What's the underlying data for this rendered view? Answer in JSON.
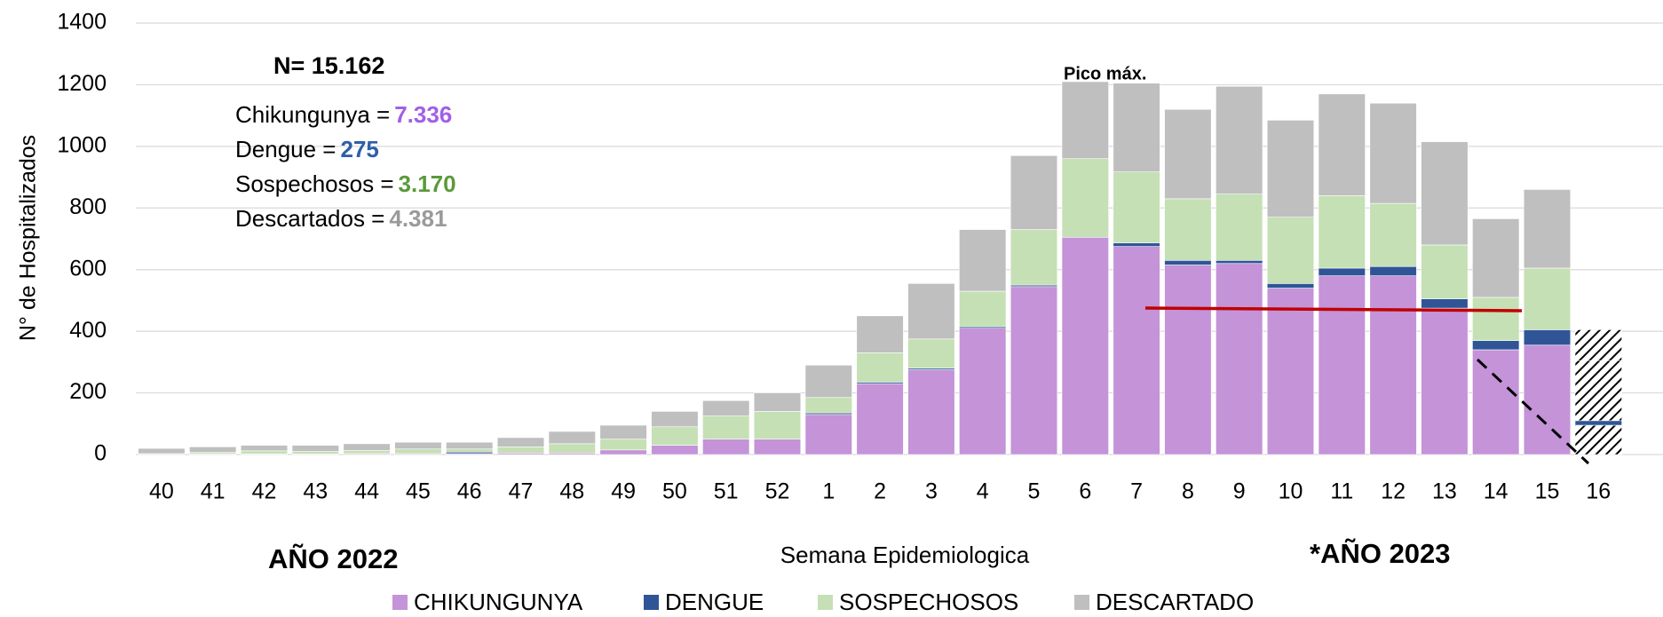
{
  "chart_data": {
    "type": "stacked_bar",
    "ylabel": "N° de Hospitalizados",
    "xlabel": "Semana Epidemiologica",
    "annotations": {
      "n_total": "N= 15.162",
      "peak": "Pico máx.",
      "year_left": "AÑO 2022",
      "year_right": "*AÑO 2023"
    },
    "summary": [
      {
        "label": "Chikungunya =",
        "value": "7.336",
        "color": "#a35ee8"
      },
      {
        "label": "Dengue =",
        "value": "275",
        "color": "#2e5fa7"
      },
      {
        "label": "Sospechosos =",
        "value": "3.170",
        "color": "#5a9a3a"
      },
      {
        "label": "Descartados =",
        "value": "4.381",
        "color": "#9a9a9a"
      }
    ],
    "categories": [
      "40",
      "41",
      "42",
      "43",
      "44",
      "45",
      "46",
      "47",
      "48",
      "49",
      "50",
      "51",
      "52",
      "1",
      "2",
      "3",
      "4",
      "5",
      "6",
      "7",
      "8",
      "9",
      "10",
      "11",
      "12",
      "13",
      "14",
      "15",
      "16"
    ],
    "series": [
      {
        "name": "CHIKUNGUNYA",
        "color": "#c493d8",
        "values": [
          0,
          2,
          2,
          2,
          3,
          3,
          3,
          5,
          5,
          15,
          30,
          50,
          50,
          130,
          230,
          275,
          410,
          545,
          705,
          675,
          615,
          620,
          540,
          580,
          580,
          475,
          340,
          355,
          95
        ]
      },
      {
        "name": "DENGUE",
        "color": "#2f5597",
        "values": [
          0,
          0,
          0,
          0,
          0,
          0,
          5,
          0,
          0,
          0,
          0,
          0,
          0,
          5,
          5,
          5,
          5,
          5,
          0,
          12,
          15,
          10,
          15,
          25,
          30,
          30,
          30,
          50,
          15
        ]
      },
      {
        "name": "SOSPECHOSOS",
        "color": "#c5e0b4",
        "values": [
          3,
          5,
          10,
          8,
          10,
          15,
          10,
          20,
          30,
          35,
          60,
          75,
          90,
          50,
          95,
          95,
          115,
          180,
          255,
          230,
          200,
          215,
          215,
          235,
          205,
          175,
          140,
          200,
          195
        ]
      },
      {
        "name": "DESCARTADO",
        "color": "#bfbfbf",
        "values": [
          17,
          18,
          18,
          20,
          22,
          22,
          22,
          30,
          40,
          45,
          50,
          50,
          60,
          105,
          120,
          180,
          200,
          240,
          250,
          288,
          290,
          350,
          315,
          330,
          325,
          335,
          255,
          255,
          100
        ]
      }
    ],
    "ylim": [
      0,
      1400
    ],
    "yticks": [
      0,
      200,
      400,
      600,
      800,
      1000,
      1200,
      1400
    ],
    "grid": true
  }
}
